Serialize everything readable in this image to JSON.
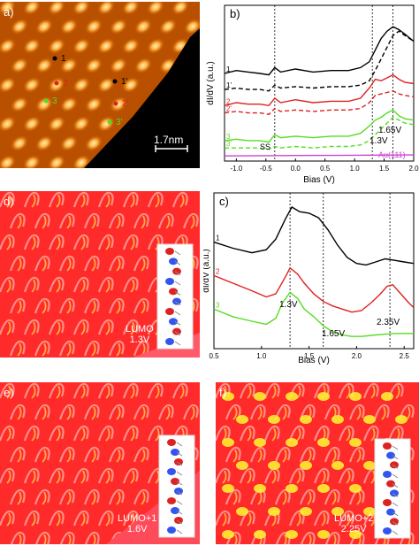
{
  "panel_a": {
    "label": "a)",
    "scalebar": "1.7nm",
    "points": [
      "1",
      "2",
      "3",
      "1'",
      "2'",
      "3'"
    ]
  },
  "panel_b": {
    "label": "b)",
    "xlabel": "Bias (V)",
    "ylabel": "dI/dV (a.u.)",
    "xticks": [
      "-1.0",
      "-0.5",
      "0.0",
      "0.5",
      "1.0",
      "1.5",
      "2.0"
    ],
    "annotations": {
      "ss": "SS",
      "v130": "1.3V",
      "v165": "1.65V",
      "au": "Au(111)"
    },
    "curve_labels": [
      "1",
      "1'",
      "2",
      "2'",
      "3",
      "3'"
    ]
  },
  "panel_c": {
    "label": "c)",
    "xlabel": "Bias (V)",
    "ylabel": "dI/dV (a.u.)",
    "xticks": [
      "0.5",
      "1.0",
      "1.5",
      "2.0",
      "2.5"
    ],
    "annotations": {
      "v130": "1.3V",
      "v165": "1.65V",
      "v235": "2.35V"
    },
    "curve_labels": [
      "1",
      "2",
      "3"
    ]
  },
  "panel_d": {
    "label": "d)",
    "caption1": "LUMO",
    "caption2": "1.3V"
  },
  "panel_e": {
    "label": "e)",
    "caption1": "LUMO+1",
    "caption2": "1.6V"
  },
  "panel_f": {
    "label": "f)",
    "caption1": "LUMO+2",
    "caption2": "2.25V"
  },
  "colors": {
    "black": "#000000",
    "red": "#e0201f",
    "green": "#55dd22",
    "magenta": "#cc44cc"
  },
  "chart_data": [
    {
      "type": "line",
      "panel": "b",
      "xlabel": "Bias (V)",
      "ylabel": "dI/dV (a.u.)",
      "xlim": [
        -1.2,
        2.0
      ],
      "series": [
        {
          "name": "1",
          "style": "solid",
          "color": "#000000",
          "x": [
            -1.2,
            -1.0,
            -0.8,
            -0.6,
            -0.45,
            -0.35,
            -0.25,
            0.0,
            0.3,
            0.6,
            0.9,
            1.1,
            1.25,
            1.35,
            1.45,
            1.55,
            1.65,
            1.75,
            1.85,
            2.0
          ],
          "y": [
            6.0,
            6.2,
            6.1,
            6.0,
            5.9,
            6.4,
            6.1,
            6.3,
            6.1,
            6.2,
            6.2,
            6.4,
            6.8,
            7.6,
            8.4,
            8.9,
            9.2,
            9.0,
            8.7,
            8.2
          ]
        },
        {
          "name": "1'",
          "style": "dashed",
          "color": "#000000",
          "x": [
            -1.2,
            -1.0,
            -0.8,
            -0.6,
            -0.45,
            -0.35,
            -0.25,
            0.0,
            0.3,
            0.6,
            0.9,
            1.1,
            1.25,
            1.35,
            1.45,
            1.55,
            1.65,
            1.75,
            1.85,
            2.0
          ],
          "y": [
            4.9,
            5.0,
            4.9,
            4.9,
            4.8,
            5.2,
            5.0,
            5.1,
            5.0,
            5.1,
            5.1,
            5.2,
            5.5,
            6.2,
            7.0,
            7.8,
            8.6,
            8.9,
            8.6,
            8.2
          ]
        },
        {
          "name": "2",
          "style": "solid",
          "color": "#e0201f",
          "x": [
            -1.2,
            -1.0,
            -0.8,
            -0.6,
            -0.45,
            -0.35,
            -0.25,
            0.0,
            0.3,
            0.6,
            0.9,
            1.1,
            1.25,
            1.35,
            1.45,
            1.55,
            1.65,
            1.75,
            1.85,
            2.0
          ],
          "y": [
            3.8,
            4.0,
            3.9,
            3.9,
            3.8,
            4.3,
            4.0,
            4.2,
            4.0,
            4.1,
            4.1,
            4.3,
            5.0,
            5.6,
            5.5,
            5.7,
            5.9,
            5.6,
            5.4,
            5.3
          ]
        },
        {
          "name": "2'",
          "style": "dashed",
          "color": "#e0201f",
          "x": [
            -1.2,
            -1.0,
            -0.8,
            -0.6,
            -0.45,
            -0.35,
            -0.25,
            0.0,
            0.3,
            0.6,
            0.9,
            1.1,
            1.25,
            1.35,
            1.45,
            1.55,
            1.65,
            1.75,
            1.85,
            2.0
          ],
          "y": [
            3.3,
            3.4,
            3.3,
            3.3,
            3.2,
            3.6,
            3.4,
            3.5,
            3.4,
            3.5,
            3.5,
            3.6,
            4.0,
            4.5,
            4.6,
            4.7,
            4.8,
            4.6,
            4.5,
            4.4
          ]
        },
        {
          "name": "3",
          "style": "solid",
          "color": "#55dd22",
          "x": [
            -1.2,
            -1.0,
            -0.8,
            -0.6,
            -0.45,
            -0.35,
            -0.25,
            0.0,
            0.3,
            0.6,
            0.9,
            1.1,
            1.25,
            1.35,
            1.45,
            1.55,
            1.65,
            1.75,
            1.85,
            2.0
          ],
          "y": [
            1.4,
            1.5,
            1.4,
            1.4,
            1.3,
            1.8,
            1.6,
            1.7,
            1.6,
            1.7,
            1.7,
            1.9,
            2.4,
            2.8,
            3.0,
            3.3,
            3.5,
            3.1,
            2.9,
            2.8
          ]
        },
        {
          "name": "3'",
          "style": "dashed",
          "color": "#55dd22",
          "x": [
            -1.2,
            -1.0,
            -0.8,
            -0.6,
            -0.45,
            -0.35,
            -0.25,
            0.0,
            0.3,
            0.6,
            0.9,
            1.1,
            1.25,
            1.35,
            1.45,
            1.55,
            1.65,
            1.75,
            1.85,
            2.0
          ],
          "y": [
            0.9,
            0.9,
            0.9,
            0.9,
            0.8,
            1.0,
            0.9,
            1.0,
            0.9,
            1.0,
            1.0,
            1.1,
            1.4,
            1.8,
            2.2,
            2.6,
            3.0,
            2.8,
            2.6,
            2.5
          ]
        },
        {
          "name": "Au(111)",
          "style": "solid",
          "color": "#cc44cc",
          "x": [
            -1.2,
            -0.5,
            0.0,
            0.5,
            1.0,
            1.5,
            2.0
          ],
          "y": [
            0.35,
            0.37,
            0.38,
            0.39,
            0.4,
            0.41,
            0.42
          ]
        }
      ]
    },
    {
      "type": "line",
      "panel": "c",
      "xlabel": "Bias (V)",
      "ylabel": "dI/dV (a.u.)",
      "xlim": [
        0.5,
        2.6
      ],
      "series": [
        {
          "name": "1",
          "color": "#000000",
          "x": [
            0.5,
            0.7,
            0.9,
            1.05,
            1.15,
            1.25,
            1.32,
            1.4,
            1.5,
            1.6,
            1.7,
            1.8,
            1.9,
            2.0,
            2.1,
            2.2,
            2.3,
            2.4,
            2.5,
            2.6
          ],
          "y": [
            7.0,
            6.6,
            6.3,
            6.5,
            7.2,
            8.5,
            9.3,
            9.0,
            8.9,
            8.6,
            7.8,
            6.8,
            6.0,
            5.6,
            5.5,
            5.7,
            5.9,
            5.8,
            5.7,
            5.6
          ]
        },
        {
          "name": "2",
          "color": "#e0201f",
          "x": [
            0.5,
            0.7,
            0.9,
            1.05,
            1.15,
            1.25,
            1.3,
            1.38,
            1.45,
            1.55,
            1.65,
            1.75,
            1.85,
            1.95,
            2.05,
            2.15,
            2.25,
            2.32,
            2.38,
            2.45,
            2.55,
            2.6
          ],
          "y": [
            4.8,
            4.3,
            3.8,
            3.4,
            3.6,
            4.7,
            5.3,
            4.9,
            4.3,
            3.6,
            3.1,
            2.8,
            2.6,
            2.4,
            2.5,
            3.0,
            3.6,
            4.1,
            4.2,
            3.7,
            3.0,
            2.7
          ]
        },
        {
          "name": "3",
          "color": "#55dd22",
          "x": [
            0.5,
            0.7,
            0.9,
            1.05,
            1.15,
            1.22,
            1.3,
            1.38,
            1.45,
            1.55,
            1.65,
            1.75,
            1.85,
            1.95,
            2.05,
            2.2,
            2.4,
            2.6
          ],
          "y": [
            2.6,
            2.1,
            1.8,
            1.6,
            2.0,
            3.0,
            3.7,
            3.3,
            2.6,
            2.1,
            1.5,
            1.1,
            0.9,
            0.8,
            0.8,
            0.9,
            1.0,
            1.0
          ]
        }
      ]
    }
  ]
}
